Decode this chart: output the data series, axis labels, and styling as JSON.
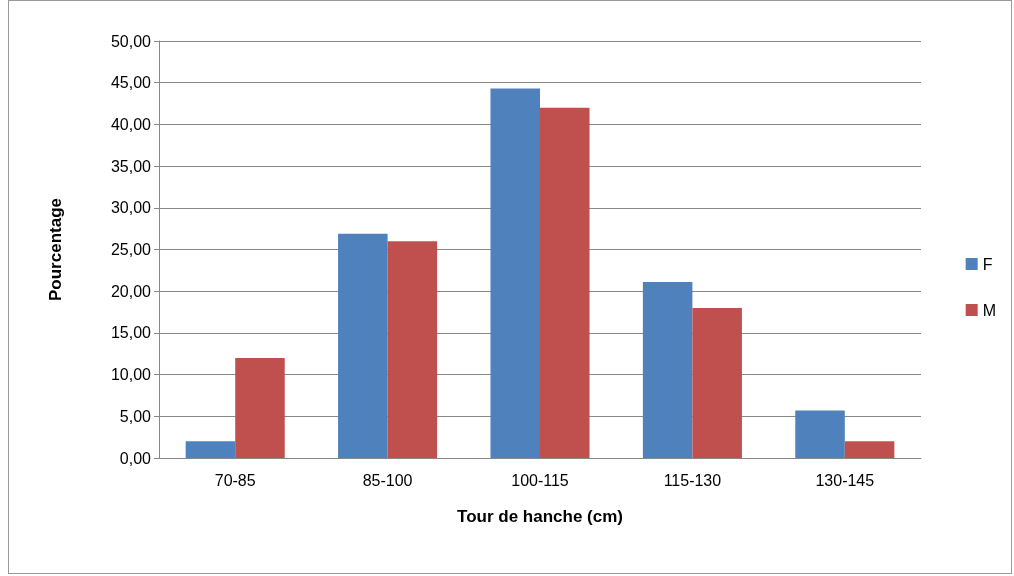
{
  "chart_data": {
    "type": "bar",
    "xlabel": "Tour de hanche (cm)",
    "ylabel": "Pourcentage",
    "categories": [
      "70-85",
      "85-100",
      "100-115",
      "115-130",
      "130-145"
    ],
    "series": [
      {
        "name": "F",
        "color": "#4f81bd",
        "values": [
          2.0,
          26.9,
          44.3,
          21.1,
          5.7
        ]
      },
      {
        "name": "M",
        "color": "#c0504d",
        "values": [
          12.0,
          26.0,
          42.0,
          18.0,
          2.0
        ]
      }
    ],
    "ylim": [
      0,
      50
    ],
    "yticks": [
      {
        "value": 0,
        "label": "0,00"
      },
      {
        "value": 5,
        "label": "5,00"
      },
      {
        "value": 10,
        "label": "10,00"
      },
      {
        "value": 15,
        "label": "15,00"
      },
      {
        "value": 20,
        "label": "20,00"
      },
      {
        "value": 25,
        "label": "25,00"
      },
      {
        "value": 30,
        "label": "30,00"
      },
      {
        "value": 35,
        "label": "35,00"
      },
      {
        "value": 40,
        "label": "40,00"
      },
      {
        "value": 45,
        "label": "45,00"
      },
      {
        "value": 50,
        "label": "50,00"
      }
    ],
    "grid": "y",
    "legend": "right"
  }
}
